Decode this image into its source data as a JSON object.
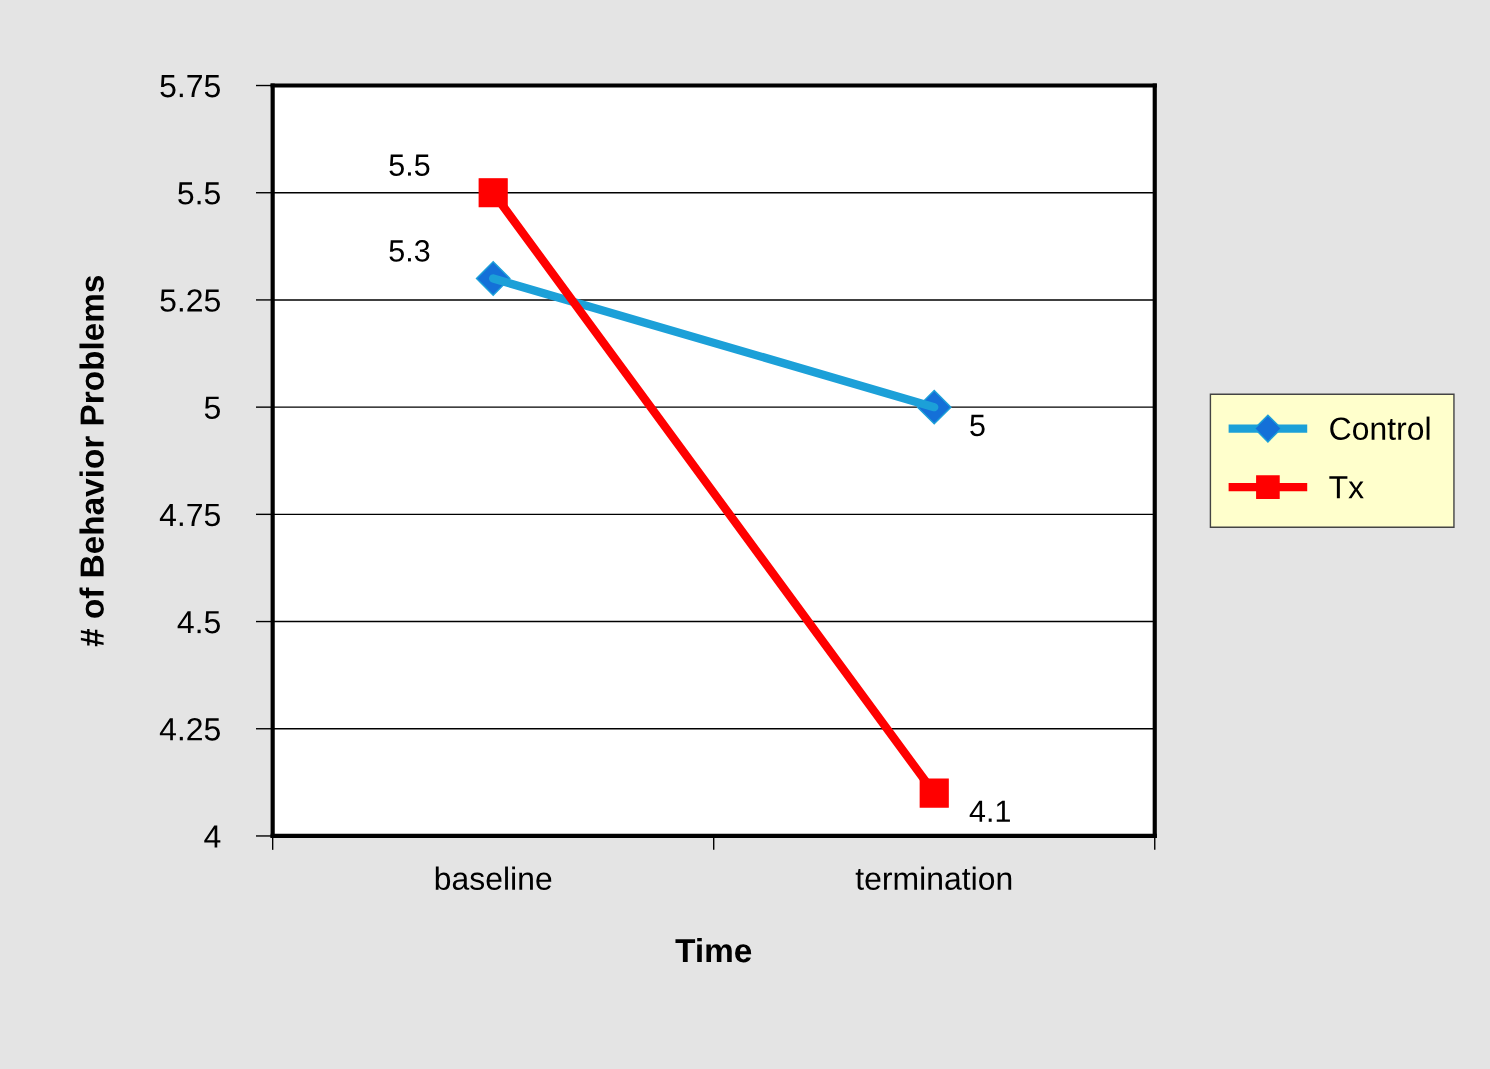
{
  "chart_data": {
    "type": "line",
    "xlabel": "Time",
    "ylabel": "# of Behavior Problems",
    "categories": [
      "baseline",
      "termination"
    ],
    "series": [
      {
        "name": "Control",
        "color": "#1ca0d8",
        "marker": "diamond",
        "values": [
          5.3,
          5
        ]
      },
      {
        "name": "Tx",
        "color": "#ff0000",
        "marker": "square",
        "values": [
          5.5,
          4.1
        ]
      }
    ],
    "ylim": [
      4,
      5.75
    ],
    "yticks": [
      4,
      4.25,
      4.5,
      4.75,
      5,
      5.25,
      5.5,
      5.75
    ],
    "grid": "y",
    "legend": "right",
    "data_labels": true,
    "line_style": "solid"
  }
}
